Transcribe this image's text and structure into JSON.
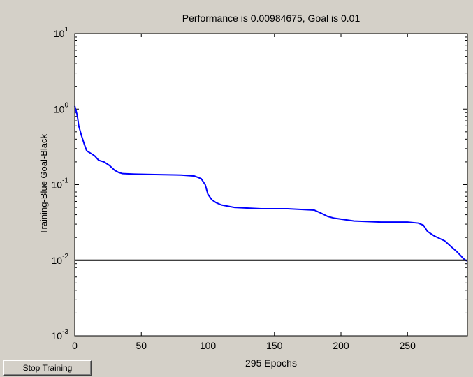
{
  "window": {
    "stop_button_label": "Stop Training"
  },
  "chart_data": {
    "type": "line",
    "title": "Performance is 0.00984675, Goal is 0.01",
    "xlabel": "295 Epochs",
    "ylabel": "Training-Blue  Goal-Black",
    "xlim": [
      0,
      295
    ],
    "ylim": [
      0.001,
      10
    ],
    "yscale": "log",
    "xticks": [
      0,
      50,
      100,
      150,
      200,
      250
    ],
    "yticks": [
      {
        "value": 10,
        "base": "10",
        "exp": "1"
      },
      {
        "value": 1,
        "base": "10",
        "exp": "0"
      },
      {
        "value": 0.1,
        "base": "10",
        "exp": "-1"
      },
      {
        "value": 0.01,
        "base": "10",
        "exp": "-2"
      },
      {
        "value": 0.001,
        "base": "10",
        "exp": "-3"
      }
    ],
    "grid": false,
    "series": [
      {
        "color": "#0000ff",
        "x": [
          0,
          1,
          2,
          3,
          5,
          7,
          9,
          12,
          15,
          18,
          22,
          26,
          30,
          33,
          36,
          45,
          60,
          80,
          90,
          95,
          98,
          100,
          103,
          106,
          110,
          120,
          140,
          160,
          180,
          185,
          190,
          195,
          200,
          210,
          230,
          250,
          258,
          262,
          265,
          270,
          278,
          283,
          287,
          290,
          292,
          294,
          295
        ],
        "y": [
          1.1,
          0.95,
          0.8,
          0.6,
          0.45,
          0.35,
          0.28,
          0.26,
          0.24,
          0.21,
          0.2,
          0.18,
          0.155,
          0.145,
          0.14,
          0.138,
          0.136,
          0.134,
          0.13,
          0.12,
          0.1,
          0.075,
          0.063,
          0.058,
          0.054,
          0.05,
          0.048,
          0.048,
          0.046,
          0.042,
          0.038,
          0.036,
          0.035,
          0.033,
          0.032,
          0.032,
          0.031,
          0.029,
          0.024,
          0.021,
          0.018,
          0.015,
          0.013,
          0.0115,
          0.0105,
          0.0099,
          0.00984675
        ]
      },
      {
        "color": "#000000",
        "x": [
          0,
          295
        ],
        "y": [
          0.01,
          0.01
        ]
      }
    ]
  }
}
